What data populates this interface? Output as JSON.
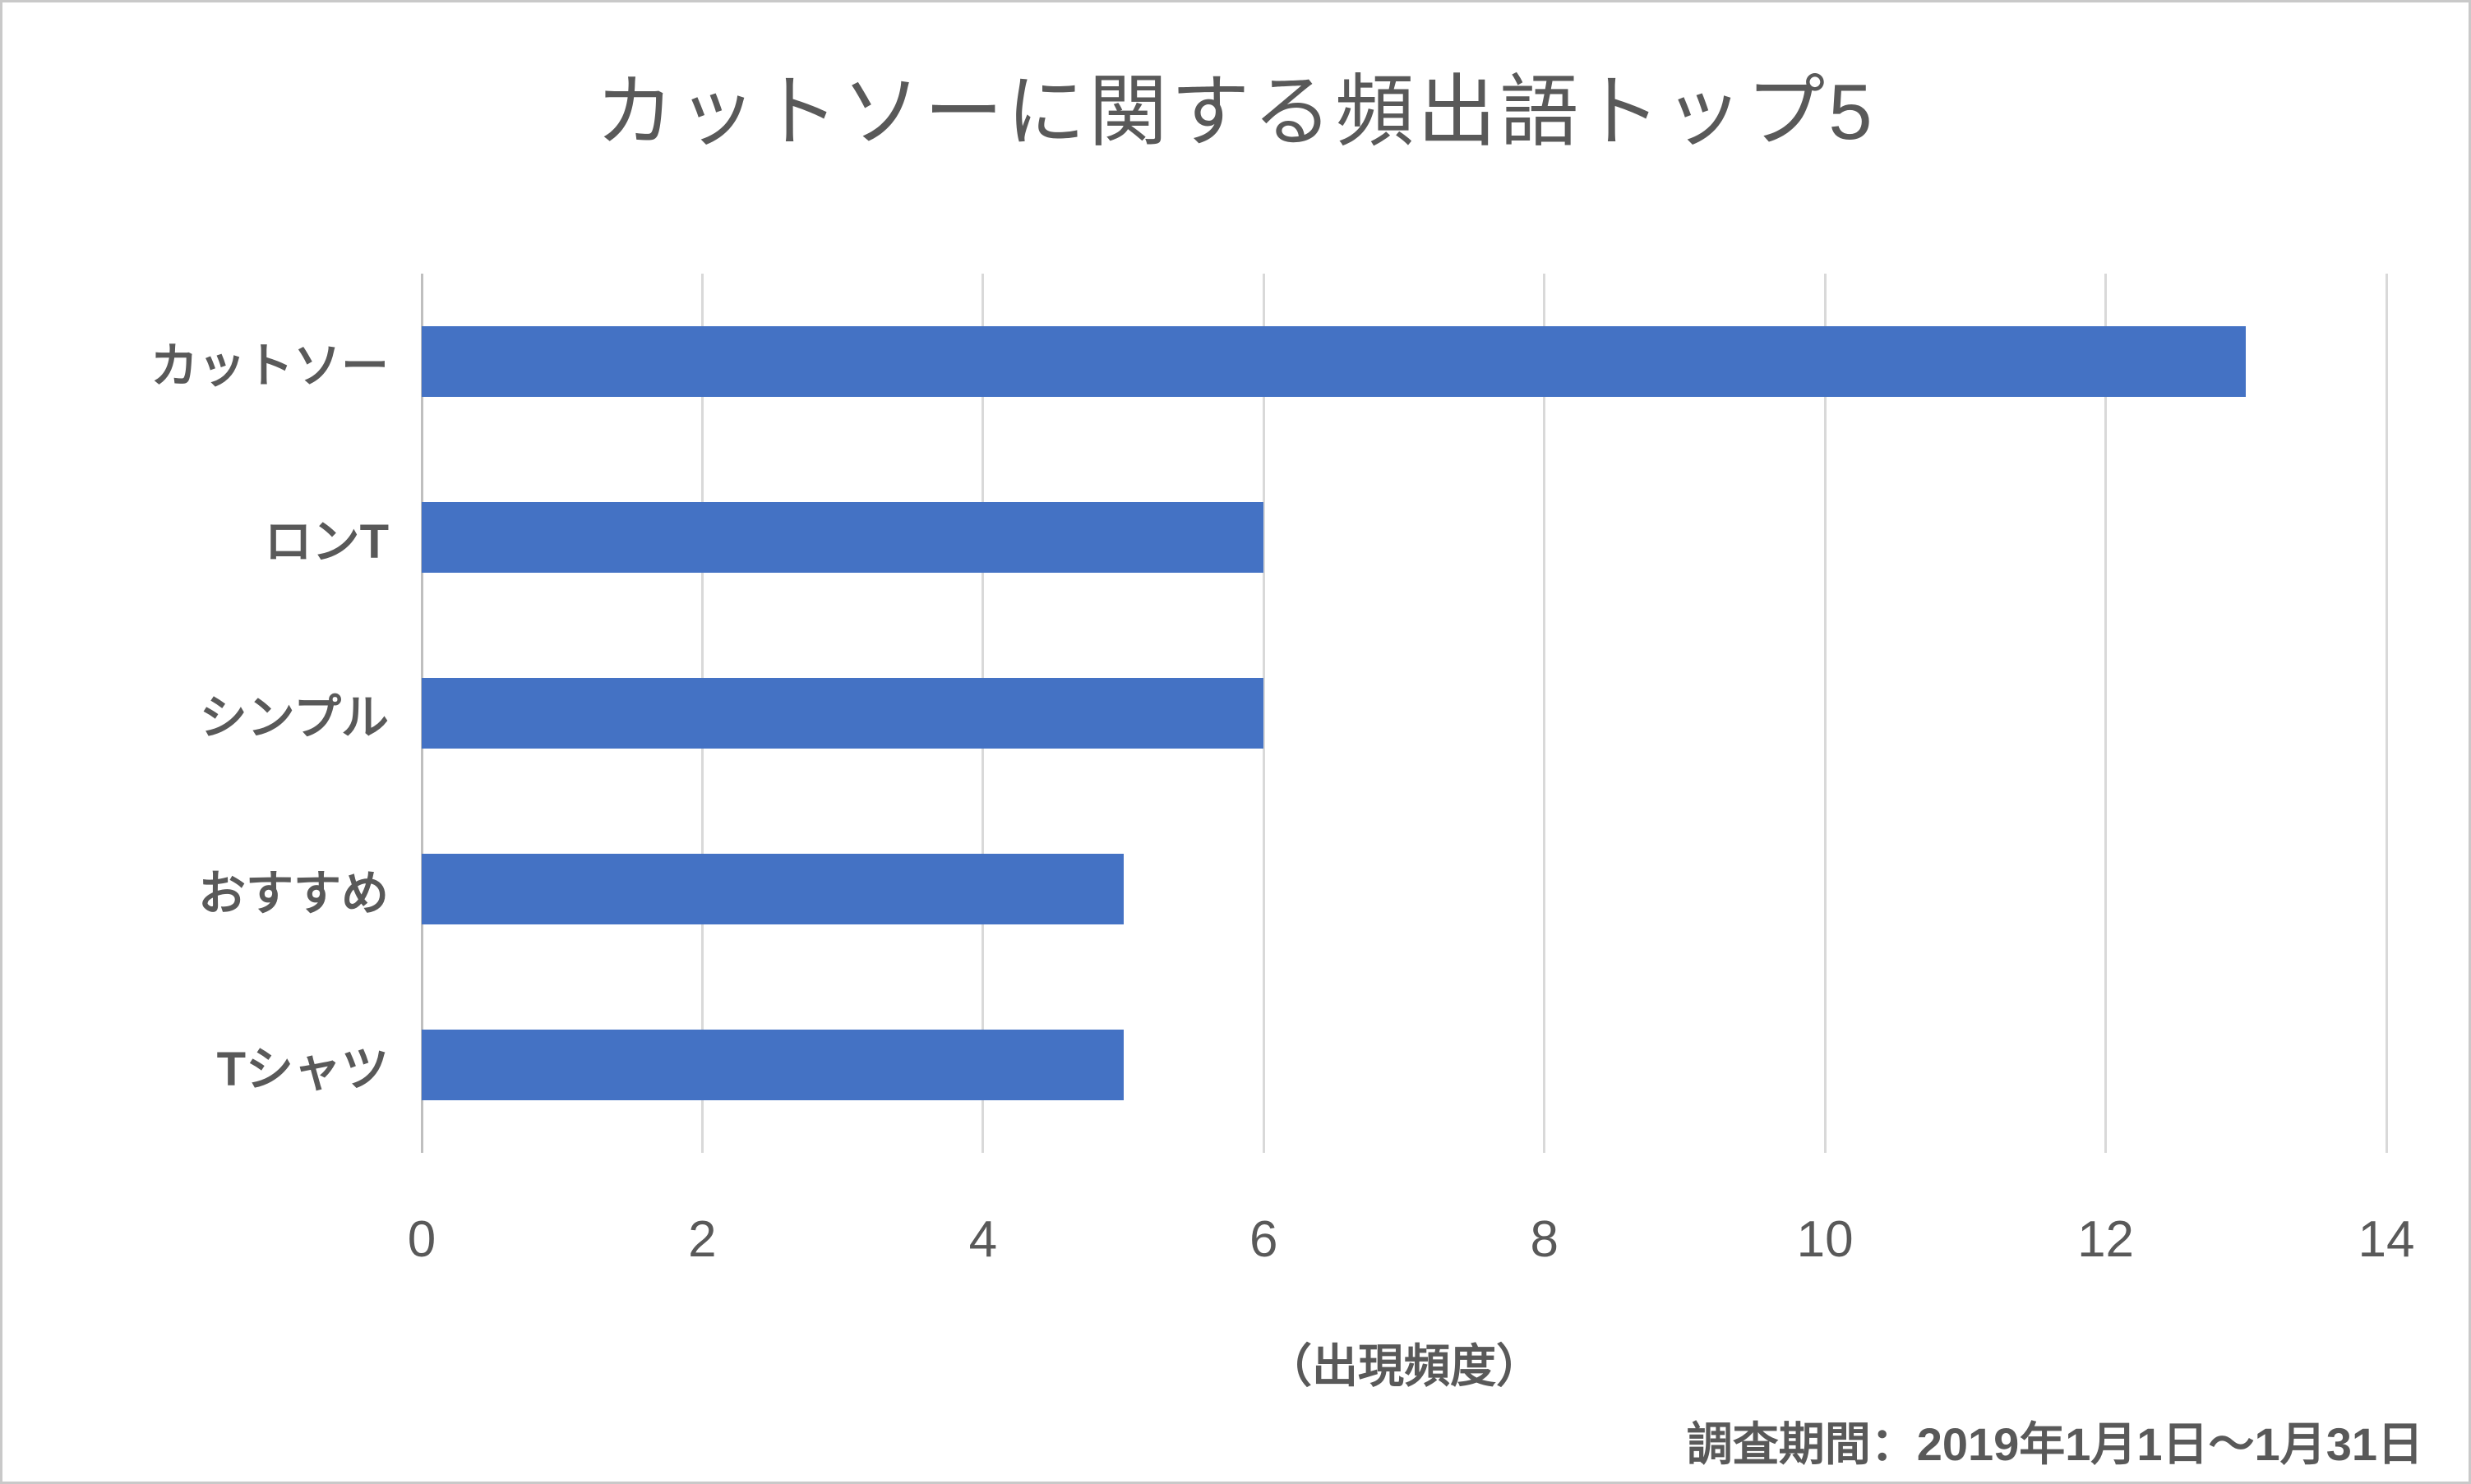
{
  "chart_data": {
    "type": "bar",
    "orientation": "horizontal",
    "title": "カットソーに関する頻出語トップ5",
    "categories": [
      "カットソー",
      "ロンT",
      "シンプル",
      "おすすめ",
      "Tシャツ"
    ],
    "values": [
      13,
      6,
      6,
      5,
      5
    ],
    "xlabel": "（出現頻度）",
    "xlim": [
      0,
      14
    ],
    "xticks": [
      0,
      2,
      4,
      6,
      8,
      10,
      12,
      14
    ],
    "grid": true,
    "legend": "none",
    "footnote": "調査期間：2019年1月1日～1月31日",
    "colors": {
      "bar": "#4472C4",
      "gridline": "#d9d9d9",
      "axis_line": "#bfbfbf",
      "text": "#595959",
      "background": "#ffffff"
    }
  }
}
